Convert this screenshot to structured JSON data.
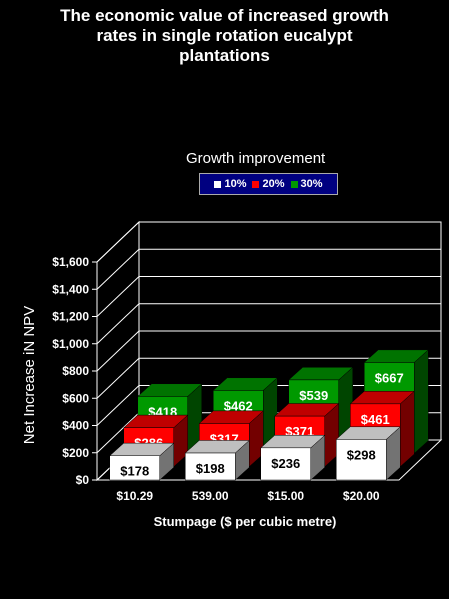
{
  "chart_data": {
    "type": "bar",
    "title": "The economic value of increased growth\nrates in single rotation eucalypt\nplantations",
    "xlabel": "Stumpage ($ per cubic metre)",
    "ylabel": "Net Increase iN NPV",
    "categories": [
      "$10.29",
      "539.00",
      "$15.00",
      "$20.00"
    ],
    "ylim": [
      0,
      1600
    ],
    "yticks": [
      "$0",
      "$200",
      "$400",
      "$600",
      "$800",
      "$1,000",
      "$1,200",
      "$1,400",
      "$1,600"
    ],
    "legend_title": "Growth improvement",
    "series": [
      {
        "name": "10%",
        "color": "#ffffff",
        "values": [
          178,
          198,
          236,
          298
        ],
        "labels": [
          "$178",
          "$198",
          "$236",
          "$298"
        ]
      },
      {
        "name": "20%",
        "color": "#ff0000",
        "values": [
          286,
          317,
          371,
          461
        ],
        "labels": [
          "$286",
          "$317",
          "$371",
          "$461"
        ]
      },
      {
        "name": "30%",
        "color": "#009900",
        "values": [
          418,
          462,
          539,
          667
        ],
        "labels": [
          "$418",
          "$462",
          "$539",
          "$667"
        ]
      }
    ]
  }
}
